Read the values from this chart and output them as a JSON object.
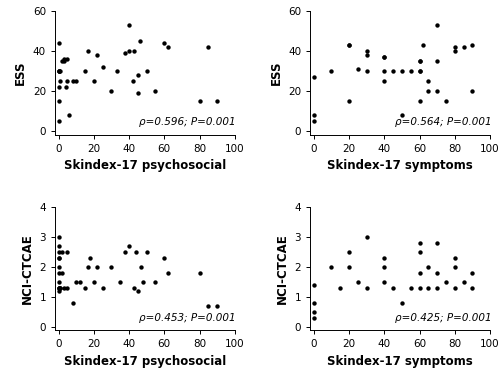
{
  "panel_tl": {
    "xlabel": "Skindex-17 psychosocial",
    "ylabel": "ESS",
    "xlim": [
      -2,
      100
    ],
    "ylim": [
      -2,
      60
    ],
    "xticks": [
      0,
      20,
      40,
      60,
      80,
      100
    ],
    "yticks": [
      0,
      20,
      40,
      60
    ],
    "annotation": "ρ=0.596; P=0.001",
    "x": [
      0,
      0,
      0,
      0,
      0,
      0,
      0,
      1,
      1,
      2,
      3,
      3,
      4,
      5,
      5,
      6,
      8,
      10,
      15,
      17,
      20,
      22,
      25,
      30,
      33,
      38,
      40,
      40,
      42,
      43,
      45,
      45,
      46,
      50,
      55,
      60,
      62,
      80,
      85,
      90
    ],
    "y": [
      44,
      30,
      30,
      30,
      22,
      15,
      5,
      30,
      25,
      35,
      35,
      36,
      22,
      36,
      25,
      8,
      25,
      25,
      30,
      40,
      25,
      38,
      32,
      20,
      30,
      39,
      40,
      53,
      25,
      40,
      28,
      19,
      45,
      30,
      20,
      44,
      42,
      15,
      42,
      15
    ]
  },
  "panel_tr": {
    "xlabel": "Skindex-17 symptoms",
    "ylabel": "ESS",
    "xlim": [
      -2,
      100
    ],
    "ylim": [
      -2,
      60
    ],
    "xticks": [
      0,
      20,
      40,
      60,
      80,
      100
    ],
    "yticks": [
      0,
      20,
      40,
      60
    ],
    "annotation": "ρ=0.564; P=0.001",
    "x": [
      0,
      0,
      0,
      10,
      20,
      20,
      20,
      25,
      30,
      30,
      30,
      40,
      40,
      40,
      40,
      45,
      50,
      50,
      55,
      60,
      60,
      60,
      60,
      60,
      62,
      65,
      65,
      70,
      70,
      70,
      75,
      80,
      80,
      85,
      90,
      90
    ],
    "y": [
      5,
      8,
      27,
      30,
      15,
      43,
      43,
      31,
      40,
      38,
      30,
      25,
      30,
      37,
      37,
      30,
      30,
      8,
      30,
      30,
      15,
      35,
      35,
      30,
      43,
      25,
      20,
      53,
      35,
      20,
      15,
      42,
      40,
      42,
      20,
      43
    ]
  },
  "panel_bl": {
    "xlabel": "Skindex-17 psychosocial",
    "ylabel": "NCI-CTCAE",
    "xlim": [
      -2,
      100
    ],
    "ylim": [
      -0.1,
      4
    ],
    "xticks": [
      0,
      20,
      40,
      60,
      80,
      100
    ],
    "yticks": [
      0,
      1,
      2,
      3,
      4
    ],
    "annotation": "ρ=0.453; P=0.001",
    "x": [
      0,
      0,
      0,
      0,
      0,
      0,
      0,
      0,
      0,
      0,
      0,
      0,
      1,
      1,
      2,
      2,
      3,
      5,
      5,
      8,
      10,
      12,
      15,
      17,
      18,
      20,
      22,
      25,
      30,
      35,
      38,
      40,
      43,
      44,
      45,
      47,
      48,
      50,
      55,
      60,
      62,
      80,
      85,
      90
    ],
    "y": [
      3,
      2.7,
      2.5,
      2.3,
      2.3,
      2,
      1.8,
      1.5,
      1.3,
      1.3,
      1.2,
      1.3,
      1.3,
      1.3,
      1.8,
      2.5,
      1.3,
      2.5,
      1.3,
      0.8,
      1.5,
      1.5,
      1.3,
      2,
      2.3,
      1.5,
      2,
      1.3,
      2,
      1.5,
      2.5,
      2.7,
      1.3,
      2.5,
      1.2,
      2,
      1.5,
      2.5,
      1.5,
      2.3,
      1.8,
      1.8,
      0.7,
      0.7
    ]
  },
  "panel_br": {
    "xlabel": "Skindex-17 symptoms",
    "ylabel": "NCI-CTCAE",
    "xlim": [
      -2,
      100
    ],
    "ylim": [
      -0.1,
      4
    ],
    "xticks": [
      0,
      20,
      40,
      60,
      80,
      100
    ],
    "yticks": [
      0,
      1,
      2,
      3,
      4
    ],
    "annotation": "ρ=0.425; P=0.001",
    "x": [
      0,
      0,
      0,
      0,
      10,
      15,
      20,
      20,
      25,
      30,
      30,
      40,
      40,
      40,
      45,
      50,
      55,
      60,
      60,
      60,
      60,
      65,
      65,
      70,
      70,
      70,
      75,
      80,
      80,
      80,
      85,
      90,
      90
    ],
    "y": [
      1.4,
      0.8,
      0.5,
      0.3,
      2,
      1.3,
      2.5,
      2.0,
      1.5,
      3.0,
      1.3,
      1.5,
      2.0,
      2.3,
      1.3,
      0.8,
      1.3,
      1.3,
      1.8,
      2.5,
      2.8,
      1.3,
      2.0,
      2.8,
      1.8,
      1.3,
      1.5,
      1.3,
      2.0,
      2.3,
      1.5,
      1.3,
      1.8
    ]
  },
  "dot_color": "#000000",
  "dot_size": 10,
  "annotation_fontsize": 7.5,
  "label_fontsize": 8.5,
  "tick_fontsize": 7.5
}
